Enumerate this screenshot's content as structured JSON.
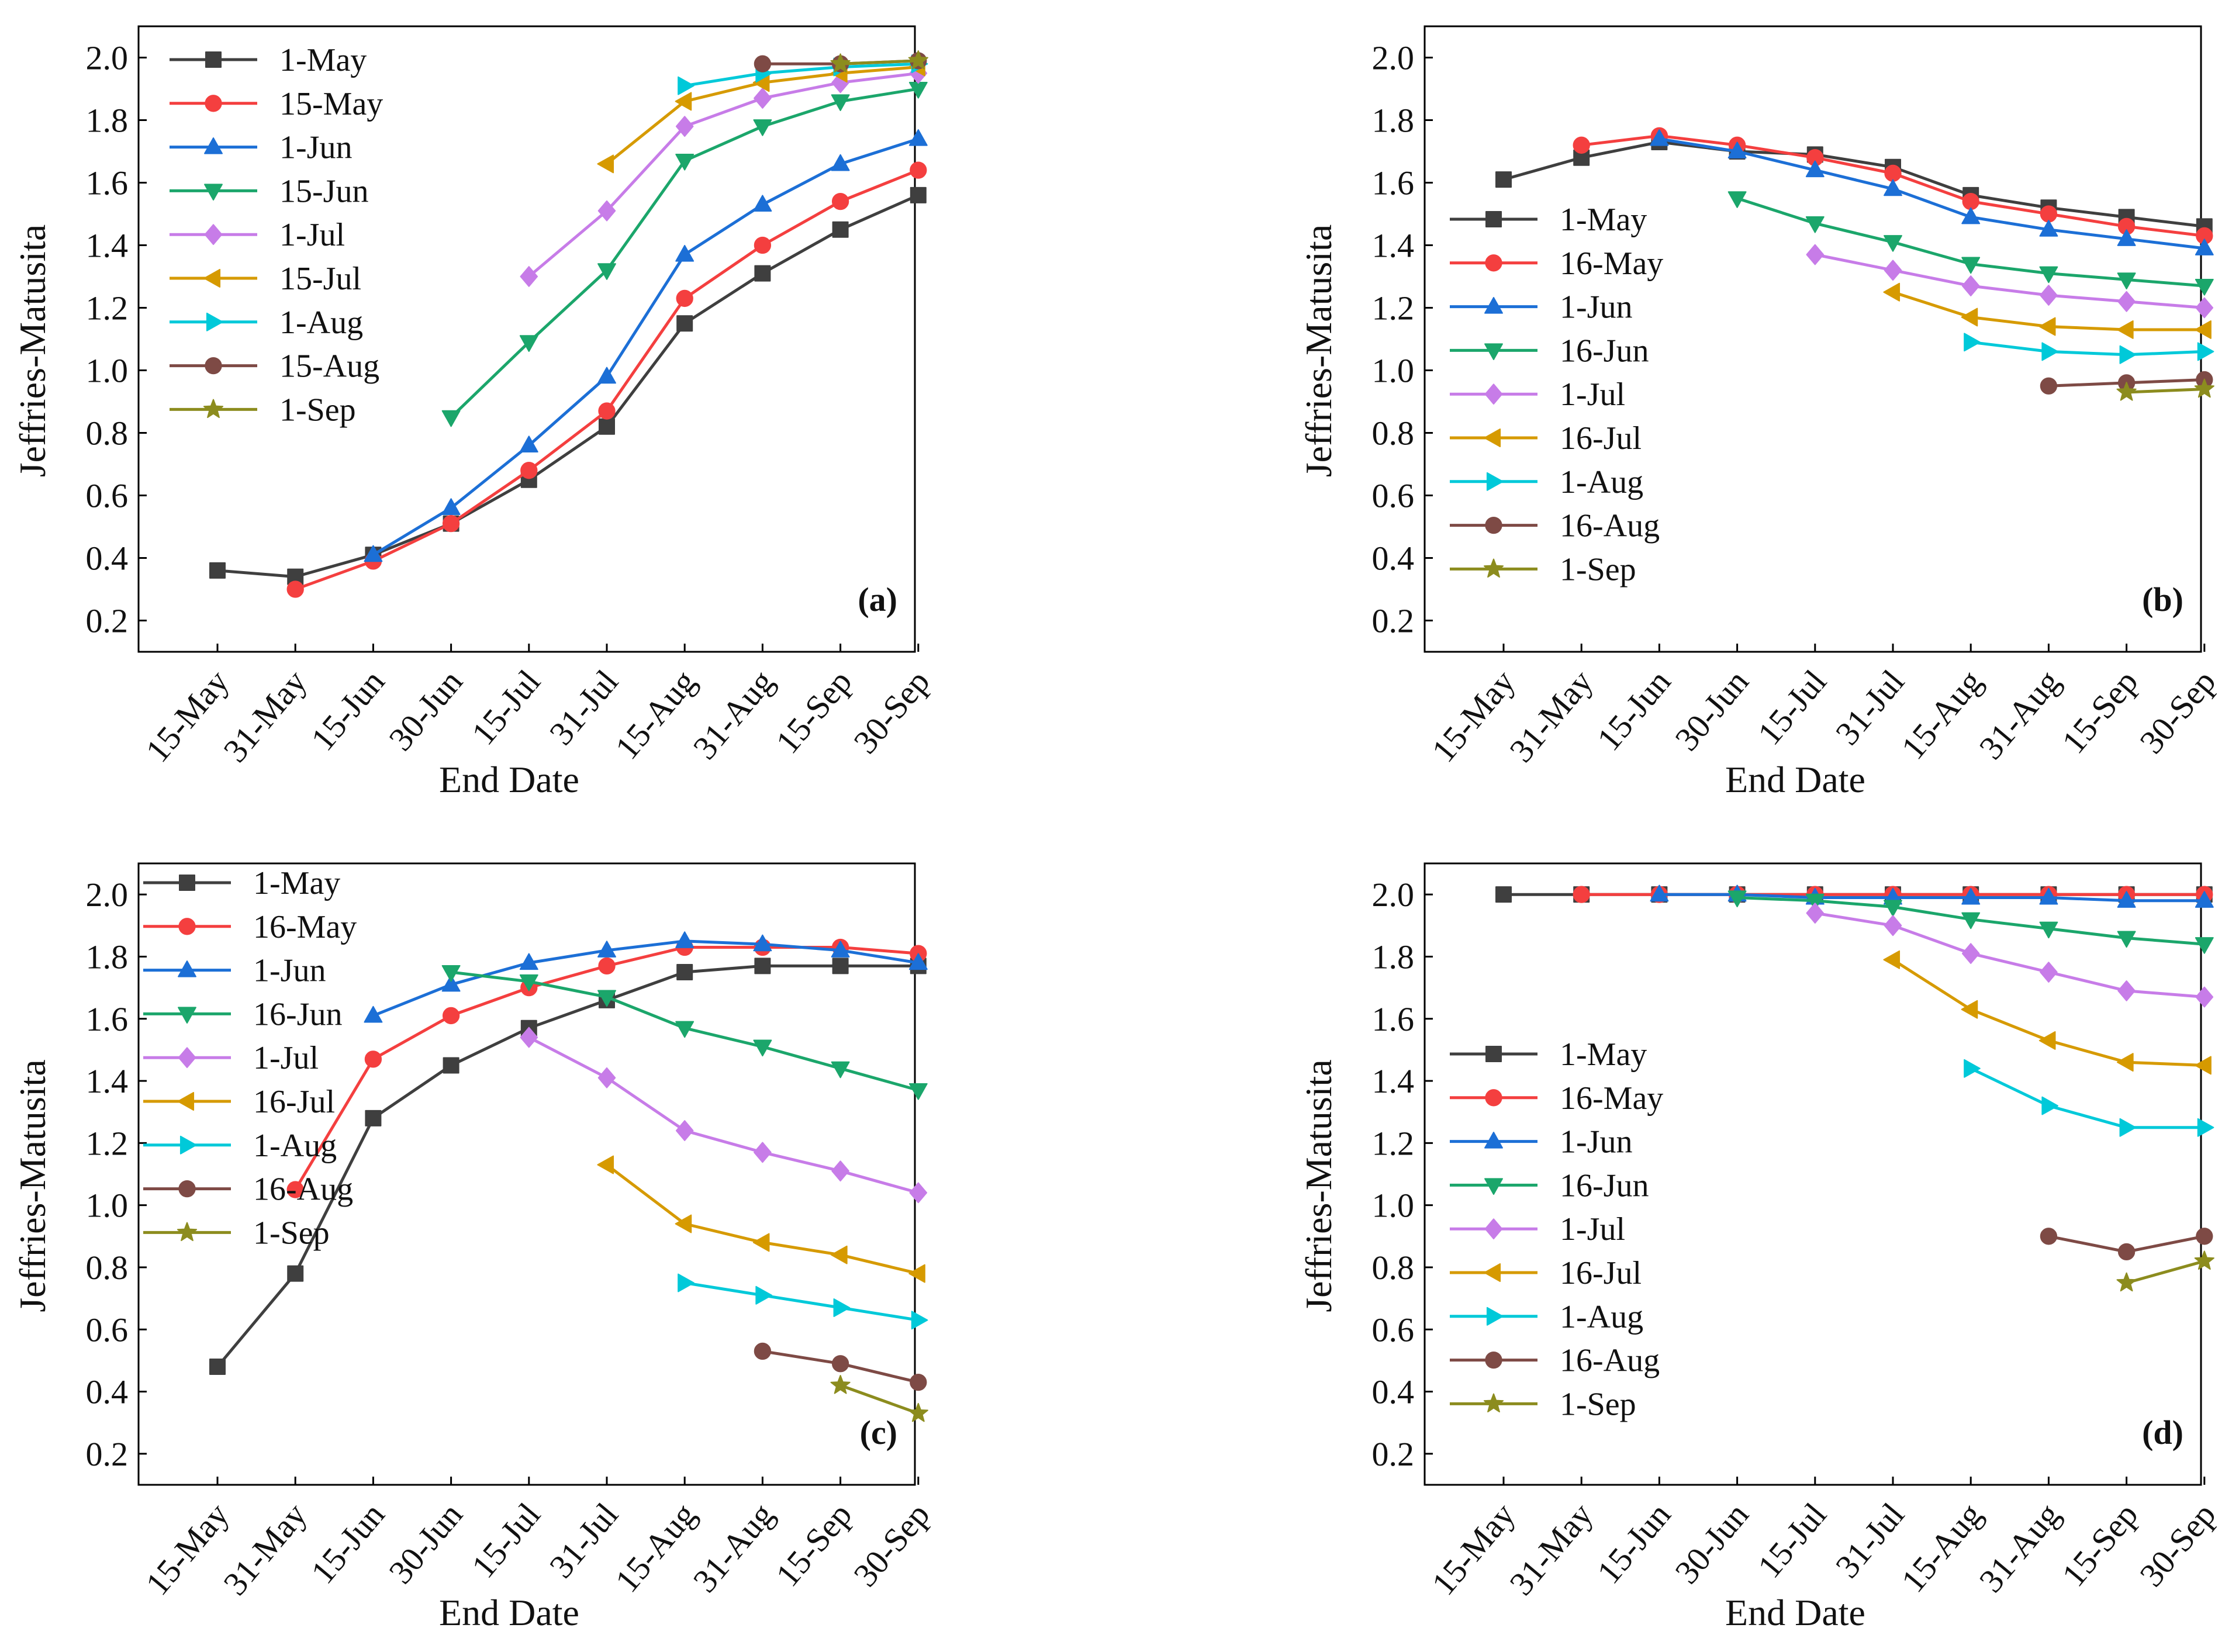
{
  "figure": {
    "description_free": true,
    "series_colors": {
      "1-May": "#3f3f3f",
      "15-May": "#f43f3f",
      "16-May": "#f43f3f",
      "1-Jun": "#1c6fd6",
      "15-Jun": "#1ba66b",
      "16-Jun": "#1ba66b",
      "1-Jul": "#c77ce8",
      "15-Jul": "#d69a00",
      "16-Jul": "#d69a00",
      "1-Aug": "#00c9d9",
      "15-Aug": "#7e4a45",
      "16-Aug": "#7e4a45",
      "1-Sep": "#8c8c1e"
    },
    "series_markers": {
      "1-May": "square",
      "15-May": "circle",
      "16-May": "circle",
      "1-Jun": "triangle-up",
      "15-Jun": "triangle-down",
      "16-Jun": "triangle-down",
      "1-Jul": "diamond",
      "15-Jul": "triangle-left",
      "16-Jul": "triangle-left",
      "1-Aug": "triangle-right",
      "15-Aug": "circle",
      "16-Aug": "circle",
      "1-Sep": "star"
    }
  },
  "chart_data": [
    {
      "type": "line",
      "panel_tag": "(a)",
      "legend_position": "top-left",
      "xlabel": "End Date",
      "ylabel": "Jeffries-Matusita",
      "categories": [
        "15-May",
        "31-May",
        "15-Jun",
        "30-Jun",
        "15-Jul",
        "31-Jul",
        "15-Aug",
        "31-Aug",
        "15-Sep",
        "30-Sep"
      ],
      "ylim": [
        0.1,
        2.1
      ],
      "yticks": [
        "0.2",
        "0.4",
        "0.6",
        "0.8",
        "1.0",
        "1.2",
        "1.4",
        "1.6",
        "1.8",
        "2.0"
      ],
      "series": [
        {
          "name": "1-May",
          "values": [
            0.36,
            0.34,
            0.41,
            0.51,
            0.65,
            0.82,
            1.15,
            1.31,
            1.45,
            1.56
          ]
        },
        {
          "name": "15-May",
          "values": [
            null,
            0.3,
            0.39,
            0.51,
            0.68,
            0.87,
            1.23,
            1.4,
            1.54,
            1.64
          ]
        },
        {
          "name": "1-Jun",
          "values": [
            null,
            null,
            0.41,
            0.56,
            0.76,
            0.98,
            1.37,
            1.53,
            1.66,
            1.74
          ]
        },
        {
          "name": "15-Jun",
          "values": [
            null,
            null,
            null,
            0.85,
            1.09,
            1.32,
            1.67,
            1.78,
            1.86,
            1.9
          ]
        },
        {
          "name": "1-Jul",
          "values": [
            null,
            null,
            null,
            null,
            1.3,
            1.51,
            1.78,
            1.87,
            1.92,
            1.95
          ]
        },
        {
          "name": "15-Jul",
          "values": [
            null,
            null,
            null,
            null,
            null,
            1.66,
            1.86,
            1.92,
            1.95,
            1.97
          ]
        },
        {
          "name": "1-Aug",
          "values": [
            null,
            null,
            null,
            null,
            null,
            null,
            1.91,
            1.95,
            1.97,
            1.98
          ]
        },
        {
          "name": "15-Aug",
          "values": [
            null,
            null,
            null,
            null,
            null,
            null,
            null,
            1.98,
            1.98,
            1.99
          ]
        },
        {
          "name": "1-Sep",
          "values": [
            null,
            null,
            null,
            null,
            null,
            null,
            null,
            null,
            1.98,
            1.99
          ]
        }
      ]
    },
    {
      "type": "line",
      "panel_tag": "(b)",
      "legend_position": "left",
      "xlabel": "End Date",
      "ylabel": "Jeffries-Matusita",
      "categories": [
        "15-May",
        "31-May",
        "15-Jun",
        "30-Jun",
        "15-Jul",
        "31-Jul",
        "15-Aug",
        "31-Aug",
        "15-Sep",
        "30-Sep"
      ],
      "ylim": [
        0.1,
        2.1
      ],
      "yticks": [
        "0.2",
        "0.4",
        "0.6",
        "0.8",
        "1.0",
        "1.2",
        "1.4",
        "1.6",
        "1.8",
        "2.0"
      ],
      "series": [
        {
          "name": "1-May",
          "values": [
            1.61,
            1.68,
            1.73,
            1.7,
            1.69,
            1.65,
            1.56,
            1.52,
            1.49,
            1.46
          ]
        },
        {
          "name": "16-May",
          "values": [
            null,
            1.72,
            1.75,
            1.72,
            1.68,
            1.63,
            1.54,
            1.5,
            1.46,
            1.43
          ]
        },
        {
          "name": "1-Jun",
          "values": [
            null,
            null,
            1.74,
            1.7,
            1.64,
            1.58,
            1.49,
            1.45,
            1.42,
            1.39
          ]
        },
        {
          "name": "16-Jun",
          "values": [
            null,
            null,
            null,
            1.55,
            1.47,
            1.41,
            1.34,
            1.31,
            1.29,
            1.27
          ]
        },
        {
          "name": "1-Jul",
          "values": [
            null,
            null,
            null,
            null,
            1.37,
            1.32,
            1.27,
            1.24,
            1.22,
            1.2
          ]
        },
        {
          "name": "16-Jul",
          "values": [
            null,
            null,
            null,
            null,
            null,
            1.25,
            1.17,
            1.14,
            1.13,
            1.13
          ]
        },
        {
          "name": "1-Aug",
          "values": [
            null,
            null,
            null,
            null,
            null,
            null,
            1.09,
            1.06,
            1.05,
            1.06
          ]
        },
        {
          "name": "16-Aug",
          "values": [
            null,
            null,
            null,
            null,
            null,
            null,
            null,
            0.95,
            0.96,
            0.97
          ]
        },
        {
          "name": "1-Sep",
          "values": [
            null,
            null,
            null,
            null,
            null,
            null,
            null,
            null,
            0.93,
            0.94
          ]
        }
      ]
    },
    {
      "type": "line",
      "panel_tag": "(c)",
      "legend_position": "top-left",
      "xlabel": "End Date",
      "ylabel": "Jeffries-Matusita",
      "categories": [
        "15-May",
        "31-May",
        "15-Jun",
        "30-Jun",
        "15-Jul",
        "31-Jul",
        "15-Aug",
        "31-Aug",
        "15-Sep",
        "30-Sep"
      ],
      "ylim": [
        0.1,
        2.1
      ],
      "yticks": [
        "0.2",
        "0.4",
        "0.6",
        "0.8",
        "1.0",
        "1.2",
        "1.4",
        "1.6",
        "1.8",
        "2.0"
      ],
      "series": [
        {
          "name": "1-May",
          "values": [
            0.48,
            0.78,
            1.28,
            1.45,
            1.57,
            1.66,
            1.75,
            1.77,
            1.77,
            1.77
          ]
        },
        {
          "name": "16-May",
          "values": [
            null,
            1.05,
            1.47,
            1.61,
            1.7,
            1.77,
            1.83,
            1.83,
            1.83,
            1.81
          ]
        },
        {
          "name": "1-Jun",
          "values": [
            null,
            null,
            1.61,
            1.71,
            1.78,
            1.82,
            1.85,
            1.84,
            1.82,
            1.78
          ]
        },
        {
          "name": "16-Jun",
          "values": [
            null,
            null,
            null,
            1.75,
            1.72,
            1.67,
            1.57,
            1.51,
            1.44,
            1.37
          ]
        },
        {
          "name": "1-Jul",
          "values": [
            null,
            null,
            null,
            null,
            1.54,
            1.41,
            1.24,
            1.17,
            1.11,
            1.04
          ]
        },
        {
          "name": "16-Jul",
          "values": [
            null,
            null,
            null,
            null,
            null,
            1.13,
            0.94,
            0.88,
            0.84,
            0.78
          ]
        },
        {
          "name": "1-Aug",
          "values": [
            null,
            null,
            null,
            null,
            null,
            null,
            0.75,
            0.71,
            0.67,
            0.63
          ]
        },
        {
          "name": "16-Aug",
          "values": [
            null,
            null,
            null,
            null,
            null,
            null,
            null,
            0.53,
            0.49,
            0.43
          ]
        },
        {
          "name": "1-Sep",
          "values": [
            null,
            null,
            null,
            null,
            null,
            null,
            null,
            null,
            0.42,
            0.33
          ]
        }
      ]
    },
    {
      "type": "line",
      "panel_tag": "(d)",
      "legend_position": "bottom-left",
      "xlabel": "End Date",
      "ylabel": "Jeffries-Matusita",
      "categories": [
        "15-May",
        "31-May",
        "15-Jun",
        "30-Jun",
        "15-Jul",
        "31-Jul",
        "15-Aug",
        "31-Aug",
        "15-Sep",
        "30-Sep"
      ],
      "ylim": [
        0.1,
        2.1
      ],
      "yticks": [
        "0.2",
        "0.4",
        "0.6",
        "0.8",
        "1.0",
        "1.2",
        "1.4",
        "1.6",
        "1.8",
        "2.0"
      ],
      "series": [
        {
          "name": "1-May",
          "values": [
            2.0,
            2.0,
            2.0,
            2.0,
            2.0,
            2.0,
            2.0,
            2.0,
            2.0,
            2.0
          ]
        },
        {
          "name": "16-May",
          "values": [
            null,
            2.0,
            2.0,
            2.0,
            2.0,
            2.0,
            2.0,
            2.0,
            2.0,
            2.0
          ]
        },
        {
          "name": "1-Jun",
          "values": [
            null,
            null,
            2.0,
            2.0,
            1.99,
            1.99,
            1.99,
            1.99,
            1.98,
            1.98
          ]
        },
        {
          "name": "16-Jun",
          "values": [
            null,
            null,
            null,
            1.99,
            1.98,
            1.96,
            1.92,
            1.89,
            1.86,
            1.84
          ]
        },
        {
          "name": "1-Jul",
          "values": [
            null,
            null,
            null,
            null,
            1.94,
            1.9,
            1.81,
            1.75,
            1.69,
            1.67
          ]
        },
        {
          "name": "16-Jul",
          "values": [
            null,
            null,
            null,
            null,
            null,
            1.79,
            1.63,
            1.53,
            1.46,
            1.45
          ]
        },
        {
          "name": "1-Aug",
          "values": [
            null,
            null,
            null,
            null,
            null,
            null,
            1.44,
            1.32,
            1.25,
            1.25
          ]
        },
        {
          "name": "16-Aug",
          "values": [
            null,
            null,
            null,
            null,
            null,
            null,
            null,
            0.9,
            0.85,
            0.9
          ]
        },
        {
          "name": "1-Sep",
          "values": [
            null,
            null,
            null,
            null,
            null,
            null,
            null,
            null,
            0.75,
            0.82
          ]
        }
      ]
    }
  ]
}
